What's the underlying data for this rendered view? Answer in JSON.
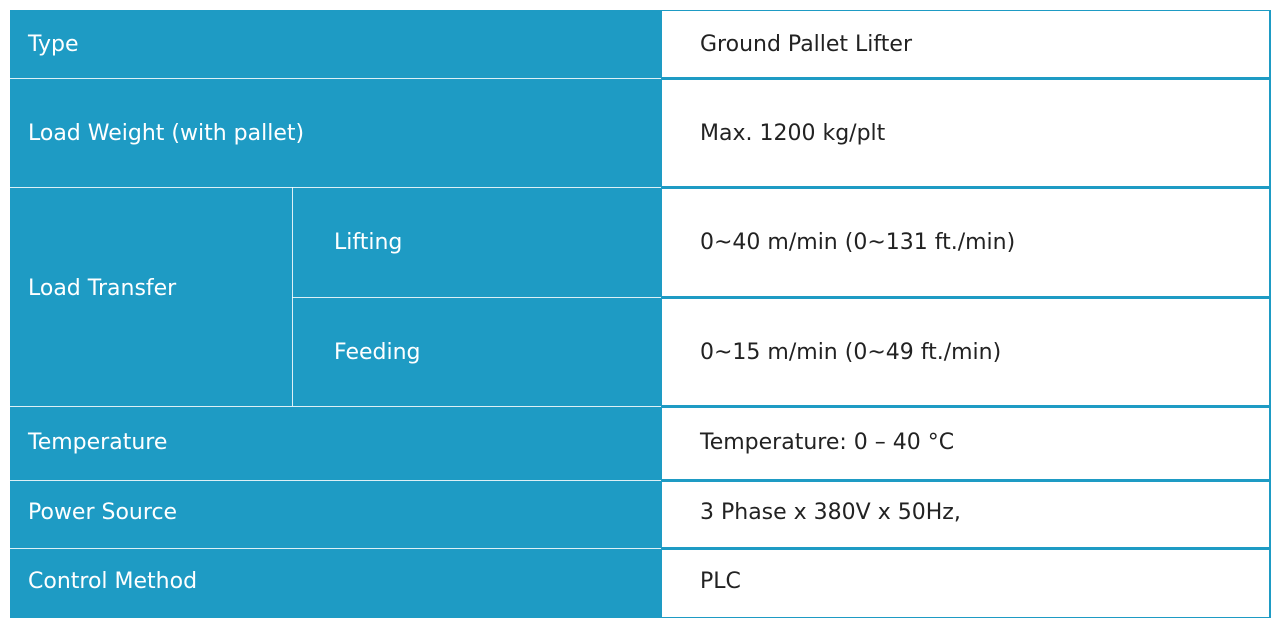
{
  "table": {
    "rows": [
      {
        "label": "Type",
        "value": "Ground Pallet Lifter"
      },
      {
        "label": "Load Weight (with pallet)",
        "value": "Max. 1200 kg/plt"
      },
      {
        "label": "Load Transfer",
        "sub_rows": [
          {
            "label": "Lifting",
            "value": "0~40 m/min (0~131 ft./min)"
          },
          {
            "label": "Feeding",
            "value": "0~15 m/min (0~49 ft./min)"
          }
        ]
      },
      {
        "label": "Temperature",
        "value": "Temperature: 0 – 40 °C"
      },
      {
        "label": "Power Source",
        "value": "3 Phase x 380V x 50Hz,"
      },
      {
        "label": "Control Method",
        "value": "PLC"
      }
    ]
  }
}
